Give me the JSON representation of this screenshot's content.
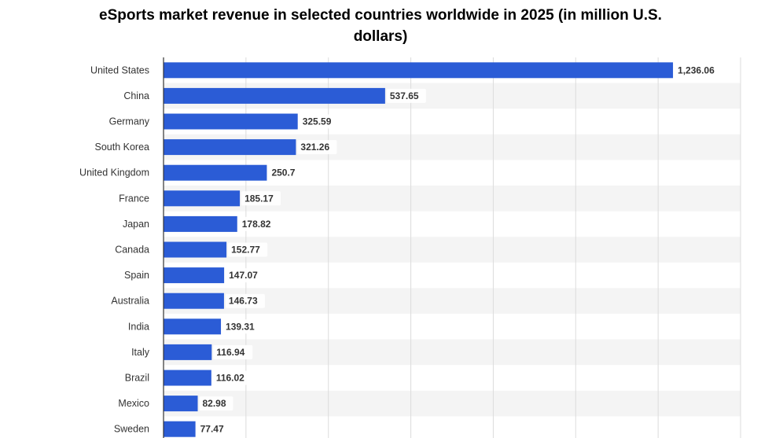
{
  "chart_data": {
    "type": "bar",
    "orientation": "horizontal",
    "title": "eSports market revenue in selected countries worldwide in 2025 (in million U.S. dollars)",
    "title_lines": [
      "eSports market revenue in selected countries worldwide in 2025 (in million U.S.",
      "dollars)"
    ],
    "categories": [
      "United States",
      "China",
      "Germany",
      "South Korea",
      "United Kingdom",
      "France",
      "Japan",
      "Canada",
      "Spain",
      "Australia",
      "India",
      "Italy",
      "Brazil",
      "Mexico",
      "Sweden"
    ],
    "values": [
      1236.06,
      537.65,
      325.59,
      321.26,
      250.7,
      185.17,
      178.82,
      152.77,
      147.07,
      146.73,
      139.31,
      116.94,
      116.02,
      82.98,
      77.47
    ],
    "value_labels": [
      "1,236.06",
      "537.65",
      "325.59",
      "321.26",
      "250.7",
      "185.17",
      "178.82",
      "152.77",
      "147.07",
      "146.73",
      "139.31",
      "116.94",
      "116.02",
      "82.98",
      "77.47"
    ],
    "xlim": [
      0,
      1400
    ],
    "grid": true,
    "bar_color": "#2b5cd6",
    "band_color": "#f4f4f4"
  }
}
